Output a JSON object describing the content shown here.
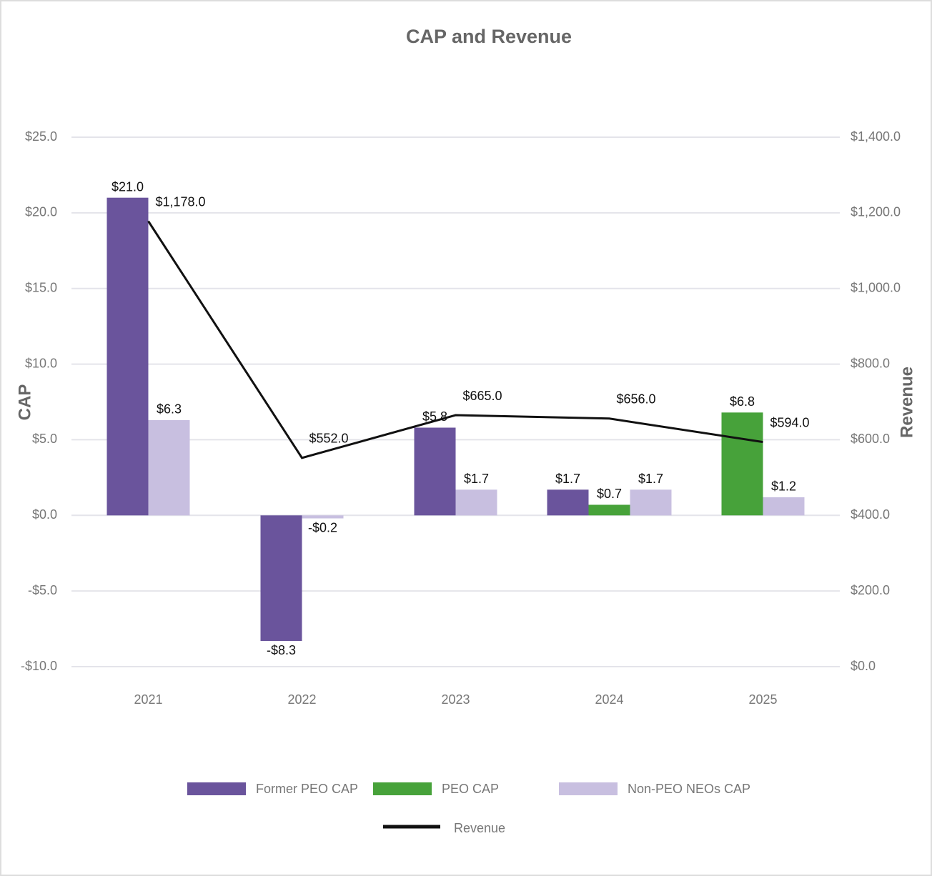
{
  "chart_data": {
    "type": "bar",
    "title": "CAP and Revenue",
    "y_label": "CAP",
    "y2_label": "Revenue",
    "categories": [
      "2021",
      "2022",
      "2023",
      "2024",
      "2025"
    ],
    "series": [
      {
        "name": "Former PEO CAP",
        "color": "#6a549c",
        "values": [
          21.0,
          -8.3,
          5.8,
          1.7,
          null
        ],
        "value_labels": [
          "$21.0",
          "-$8.3",
          "$5.8",
          "$1.7",
          null
        ]
      },
      {
        "name": "PEO CAP",
        "color": "#47a23a",
        "values": [
          null,
          null,
          null,
          0.7,
          6.8
        ],
        "value_labels": [
          null,
          null,
          null,
          "$0.7",
          "$6.8"
        ]
      },
      {
        "name": "Non-PEO NEOs CAP",
        "color": "#c8bfe0",
        "values": [
          6.3,
          -0.2,
          1.7,
          1.7,
          1.2
        ],
        "value_labels": [
          "$6.3",
          "-$0.2",
          "$1.7",
          "$1.7",
          "$1.2"
        ]
      },
      {
        "name": "Revenue",
        "type": "line",
        "axis": "y2",
        "color": "#111111",
        "values": [
          1178.0,
          552.0,
          665.0,
          656.0,
          594.0
        ],
        "value_labels": [
          "$1,178.0",
          "$552.0",
          "$665.0",
          "$656.0",
          "$594.0"
        ]
      }
    ],
    "ylim": [
      -10,
      25
    ],
    "yticks": [
      {
        "value": -10,
        "label": "-$10.0"
      },
      {
        "value": -5,
        "label": "-$5.0"
      },
      {
        "value": 0,
        "label": "$0.0"
      },
      {
        "value": 5,
        "label": "$5.0"
      },
      {
        "value": 10,
        "label": "$10.0"
      },
      {
        "value": 15,
        "label": "$15.0"
      },
      {
        "value": 20,
        "label": "$20.0"
      },
      {
        "value": 25,
        "label": "$25.0"
      }
    ],
    "y2lim": [
      0,
      1400
    ],
    "y2ticks": [
      {
        "value": 0,
        "label": "$0.0"
      },
      {
        "value": 200,
        "label": "$200.0"
      },
      {
        "value": 400,
        "label": "$400.0"
      },
      {
        "value": 600,
        "label": "$600.0"
      },
      {
        "value": 800,
        "label": "$800.0"
      },
      {
        "value": 1000,
        "label": "$1,000.0"
      },
      {
        "value": 1200,
        "label": "$1,200.0"
      },
      {
        "value": 1400,
        "label": "$1,400.0"
      }
    ],
    "grid": true
  }
}
